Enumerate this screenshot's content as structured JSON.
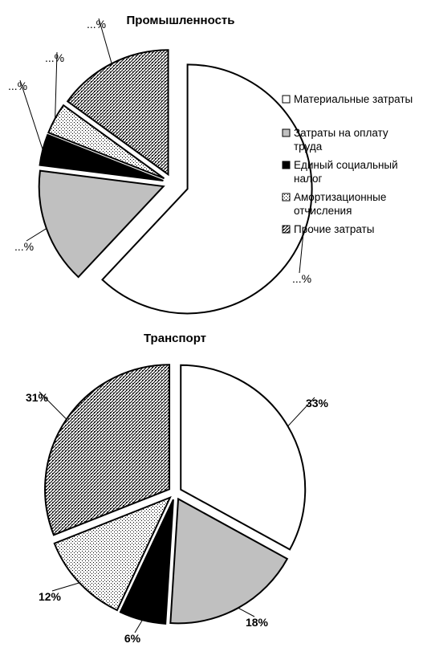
{
  "legend": [
    {
      "lines": [
        "Материальные затраты"
      ],
      "pattern": "white"
    },
    {
      "lines": [
        "Затраты на оплату",
        "труда"
      ],
      "pattern": "gray"
    },
    {
      "lines": [
        "Единый социальный",
        "налог"
      ],
      "pattern": "black"
    },
    {
      "lines": [
        "Амортизационные",
        "отчисления"
      ],
      "pattern": "dots"
    },
    {
      "lines": [
        "Прочие затраты"
      ],
      "pattern": "hatch"
    }
  ],
  "chart_data": [
    {
      "type": "pie",
      "title": "Промышленность",
      "categories": [
        "Материальные затраты",
        "Затраты на оплату труда",
        "Единый социальный налог",
        "Амортизационные отчисления",
        "Прочие затраты"
      ],
      "values": [
        62,
        15,
        4,
        4,
        15
      ],
      "labels": [
        "...%",
        "...%",
        "...%",
        "...%",
        "...%"
      ],
      "exploded": true,
      "legend_position": "right"
    },
    {
      "type": "pie",
      "title": "Транспорт",
      "categories": [
        "Материальные затраты",
        "Затраты на оплату труда",
        "Единый социальный налог",
        "Амортизационные отчисления",
        "Прочие затраты"
      ],
      "values": [
        33,
        18,
        6,
        12,
        31
      ],
      "labels": [
        "33%",
        "18%",
        "6%",
        "12%",
        "31%"
      ],
      "exploded": true
    }
  ]
}
